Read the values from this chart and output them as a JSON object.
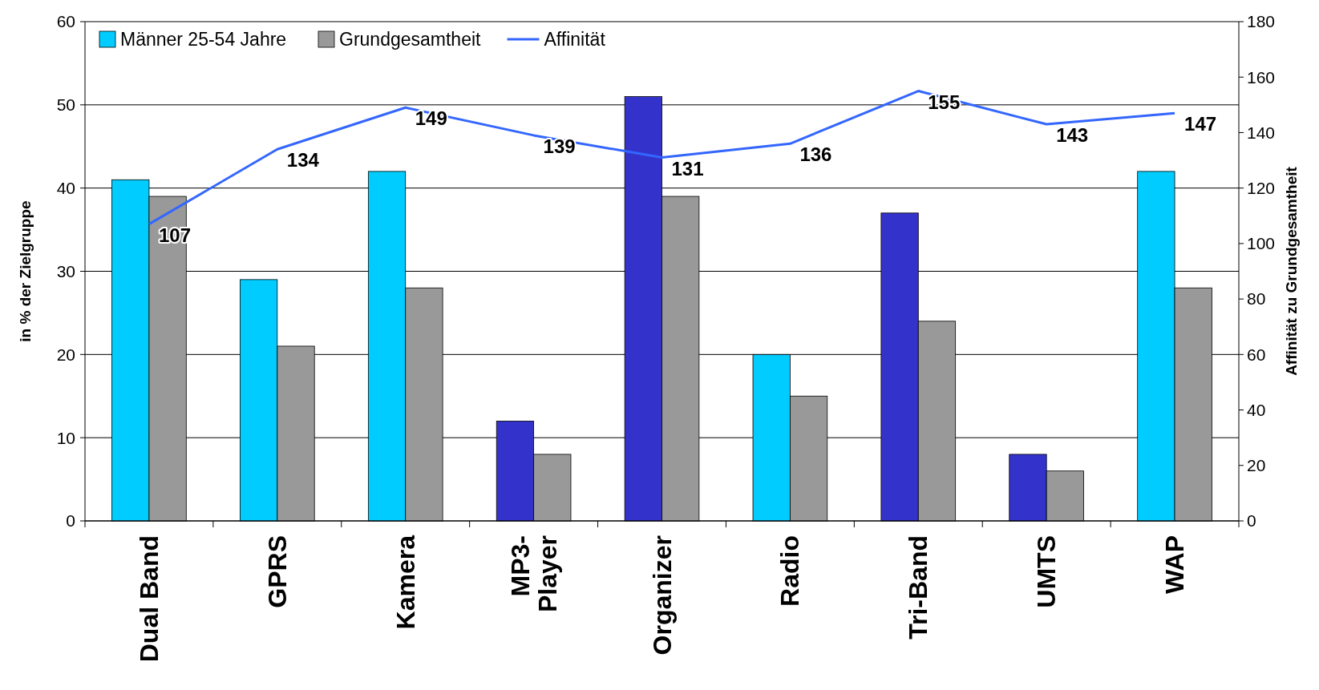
{
  "chart_data": {
    "type": "bar",
    "ylabel": "in % der Zielgruppe",
    "y2label": "Affinität zu Grundgesamtheit",
    "categories": [
      "Dual Band",
      "GPRS",
      "Kamera",
      "MP3-Player",
      "Organizer",
      "Radio",
      "Tri-Band",
      "UMTS",
      "WAP"
    ],
    "series": [
      {
        "name": "Männer 25-54 Jahre",
        "color": "#00ccff",
        "colors": [
          "#00ccff",
          "#00ccff",
          "#00ccff",
          "#3333cc",
          "#3333cc",
          "#00ccff",
          "#3333cc",
          "#3333cc",
          "#00ccff"
        ],
        "values": [
          41,
          29,
          42,
          12,
          51,
          20,
          37,
          8,
          42
        ]
      },
      {
        "name": "Grundgesamtheit",
        "color": "#999999",
        "values": [
          39,
          21,
          28,
          8,
          39,
          15,
          24,
          6,
          28
        ]
      },
      {
        "name": "Affinität",
        "type": "line",
        "axis": "y2",
        "color": "#3366ff",
        "values": [
          107,
          134,
          149,
          139,
          131,
          136,
          155,
          143,
          147
        ],
        "data_labels": true
      }
    ],
    "ylim": [
      0,
      60
    ],
    "yticks": [
      0,
      10,
      20,
      30,
      40,
      50,
      60
    ],
    "y2lim": [
      0,
      180
    ],
    "y2ticks": [
      0,
      20,
      40,
      60,
      80,
      100,
      120,
      140,
      160,
      180
    ],
    "grid": "y",
    "legend": "top left"
  }
}
